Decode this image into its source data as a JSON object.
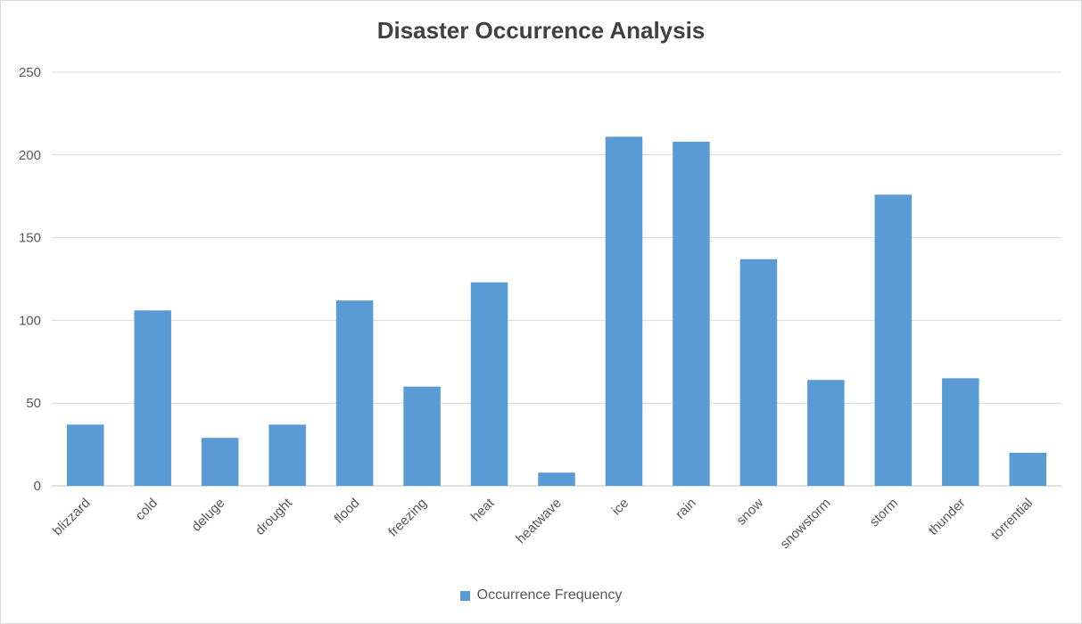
{
  "chart_data": {
    "type": "bar",
    "title": "Disaster Occurrence Analysis",
    "categories": [
      "blizzard",
      "cold",
      "deluge",
      "drought",
      "flood",
      "freezing",
      "heat",
      "heatwave",
      "ice",
      "rain",
      "snow",
      "snowstorm",
      "storm",
      "thunder",
      "torrential"
    ],
    "series": [
      {
        "name": "Occurrence Frequency",
        "color": "#5b9bd5",
        "values": [
          37,
          106,
          29,
          37,
          112,
          60,
          123,
          8,
          211,
          208,
          137,
          64,
          176,
          65,
          20
        ]
      }
    ],
    "ylim": [
      0,
      250
    ],
    "yticks": [
      0,
      50,
      100,
      150,
      200,
      250
    ],
    "grid": true,
    "legend_position": "bottom"
  }
}
